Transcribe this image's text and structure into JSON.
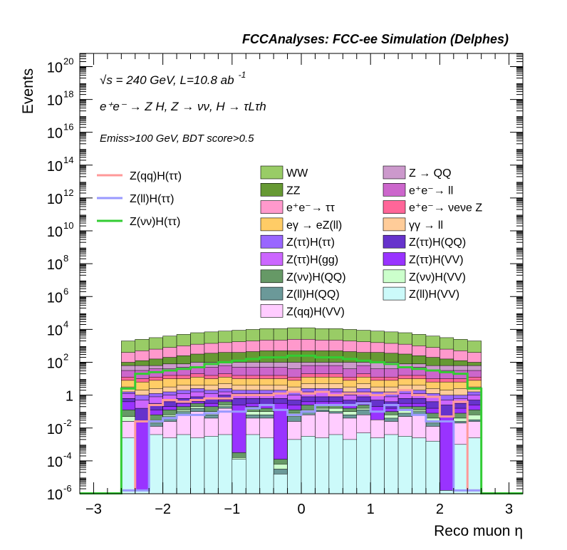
{
  "chart_data": {
    "type": "histogram-stack",
    "title": "FCCAnalyses: FCC-ee Simulation (Delphes)",
    "annotations": {
      "sqrt_s": "√s = 240 GeV, L=10.8 ab",
      "sqrt_s_exp": "-1",
      "process": "e⁺e⁻ → Z H, Z → νν, H → τLτh",
      "cuts": "Emiss>100 GeV, BDT score>0.5"
    },
    "xlabel": "Reco muon η",
    "ylabel": "Events",
    "xlim": [
      -3.2,
      3.2
    ],
    "ylim_log10": [
      -6,
      20.8
    ],
    "log_y": true,
    "x_ticks": [
      -3,
      -2,
      -1,
      0,
      1,
      2,
      3
    ],
    "x_tick_labels": [
      "−3",
      "−2",
      "−1",
      "0",
      "1",
      "2",
      "3"
    ],
    "y_ticks_log10": [
      -6,
      -4,
      -2,
      0,
      2,
      4,
      6,
      8,
      10,
      12,
      14,
      16,
      18,
      20
    ],
    "y_tick_labels": [
      {
        "base": "10",
        "exp": "-6"
      },
      {
        "base": "10",
        "exp": "-4"
      },
      {
        "base": "10",
        "exp": "-2"
      },
      {
        "base": "1",
        "exp": ""
      },
      {
        "base": "10",
        "exp": "2"
      },
      {
        "base": "10",
        "exp": "4"
      },
      {
        "base": "10",
        "exp": "6"
      },
      {
        "base": "10",
        "exp": "8"
      },
      {
        "base": "10",
        "exp": "10"
      },
      {
        "base": "10",
        "exp": "12"
      },
      {
        "base": "10",
        "exp": "14"
      },
      {
        "base": "10",
        "exp": "16"
      },
      {
        "base": "10",
        "exp": "18"
      },
      {
        "base": "10",
        "exp": "20"
      }
    ],
    "bin_edges": [
      -2.6,
      -2.4,
      -2.2,
      -2.0,
      -1.8,
      -1.6,
      -1.4,
      -1.2,
      -1.0,
      -0.8,
      -0.6,
      -0.4,
      -0.2,
      0.0,
      0.2,
      0.4,
      0.6,
      0.8,
      1.0,
      1.2,
      1.4,
      1.6,
      1.8,
      2.0,
      2.2,
      2.4,
      2.6
    ],
    "stack_totals_log10": [
      3.3,
      3.4,
      3.5,
      3.6,
      3.7,
      3.8,
      3.85,
      3.9,
      3.95,
      4.0,
      4.05,
      4.05,
      4.1,
      4.1,
      4.05,
      4.05,
      4.0,
      3.95,
      3.9,
      3.85,
      3.8,
      3.7,
      3.6,
      3.5,
      3.4,
      3.3
    ],
    "stack_layers": [
      {
        "name": "Z(ll)H(VV)",
        "color": "#ccfafa",
        "log10": [
          -2.6,
          -5.8,
          -2.4,
          -2.6,
          -2.4,
          -2.6,
          -2.5,
          -2.4,
          -3.9,
          -2.4,
          -2.6,
          -4.8,
          -2.7,
          -2.5,
          -2.6,
          -2.4,
          -2.7,
          -2.3,
          -2.6,
          -2.4,
          -2.5,
          -2.6,
          -2.8,
          -5.8,
          -3.0,
          -2.6
        ]
      },
      {
        "name": "Z(qq)H(VV)",
        "color": "#ffccff",
        "log10": [
          -1.6,
          -5.8,
          -1.9,
          -1.6,
          -1.2,
          -1.0,
          -1.4,
          -0.8,
          -4.6,
          -1.4,
          -1.4,
          -4.8,
          -1.6,
          -1.2,
          -1.0,
          -1.1,
          -1.4,
          -1.2,
          -1.5,
          -1.6,
          -1.3,
          -1.2,
          -1.9,
          -5.8,
          -1.7,
          -1.6
        ]
      },
      {
        "name": "Z(ll)H(QQ)",
        "color": "#6b9999",
        "log10": [
          -1.6,
          -5.8,
          -1.7,
          -1.3,
          -1.0,
          -0.8,
          -1.2,
          -0.7,
          -4.1,
          -1.2,
          -1.2,
          -4.5,
          -1.3,
          -1.0,
          -0.9,
          -1.0,
          -1.2,
          -0.9,
          -5.2,
          -1.4,
          -1.1,
          -1.0,
          -1.7,
          -5.8,
          -1.6,
          -1.5
        ]
      },
      {
        "name": "Z(νν)H(VV)",
        "color": "#ccffcc",
        "log10": [
          -1.3,
          -5.8,
          -1.5,
          -1.2,
          -0.9,
          -0.7,
          -1.0,
          -0.6,
          -3.8,
          -1.0,
          -1.0,
          -4.2,
          -1.1,
          -0.9,
          -0.8,
          -0.8,
          -1.0,
          -0.8,
          -4.4,
          -1.2,
          -0.9,
          -0.9,
          -1.4,
          -5.8,
          -1.4,
          -1.2
        ]
      },
      {
        "name": "Z(νν)H(QQ)",
        "color": "#669966",
        "log10": [
          -0.9,
          -5.8,
          -1.2,
          -0.9,
          -0.7,
          -0.5,
          -0.7,
          -0.4,
          -3.5,
          -0.7,
          -0.8,
          -3.9,
          -0.9,
          -0.6,
          -0.6,
          -0.6,
          -0.8,
          -0.6,
          -3.9,
          -1.0,
          -0.7,
          -0.7,
          -1.1,
          -5.8,
          -1.1,
          -0.9
        ]
      },
      {
        "name": "Z(ττ)H(VV)",
        "color": "#9933ff",
        "log10": [
          -0.4,
          -1.6,
          -0.9,
          -0.7,
          -0.5,
          -0.4,
          -0.5,
          -0.3,
          -0.6,
          -0.5,
          -0.6,
          -0.5,
          -0.6,
          -0.4,
          -0.4,
          -0.4,
          -0.6,
          -0.4,
          -0.7,
          -0.8,
          -0.5,
          -0.5,
          -0.8,
          -1.3,
          -0.8,
          -0.6
        ]
      },
      {
        "name": "Z(ττ)H(QQ)",
        "color": "#6633cc",
        "log10": [
          -0.2,
          -0.8,
          -0.5,
          -0.4,
          -0.2,
          -0.1,
          -0.2,
          0.0,
          -0.2,
          -0.2,
          -0.2,
          -0.2,
          -0.3,
          -0.1,
          -0.1,
          -0.1,
          -0.3,
          -0.1,
          -0.3,
          -0.4,
          -0.2,
          -0.2,
          -0.4,
          -0.6,
          -0.5,
          -0.3
        ]
      },
      {
        "name": "Z(ττ)H(gg)",
        "color": "#cc66ff",
        "log10": [
          0.1,
          -0.3,
          -0.1,
          0.0,
          0.1,
          0.2,
          0.1,
          0.2,
          0.1,
          0.1,
          0.1,
          0.1,
          0.0,
          0.2,
          0.2,
          0.2,
          0.0,
          0.2,
          0.0,
          -0.1,
          0.1,
          0.1,
          -0.1,
          -0.3,
          -0.2,
          0.0
        ]
      },
      {
        "name": "Z(ττ)H(ττ)",
        "color": "#9966ff",
        "log10": [
          0.2,
          0.0,
          0.1,
          0.2,
          0.3,
          0.4,
          0.3,
          0.4,
          0.3,
          0.3,
          0.3,
          0.3,
          0.2,
          0.4,
          0.4,
          0.4,
          0.2,
          0.4,
          0.2,
          0.2,
          0.3,
          0.3,
          0.1,
          0.0,
          0.0,
          0.2
        ]
      },
      {
        "name": "γγ → ll",
        "color": "#ffcc99",
        "log10": [
          0.5,
          0.3,
          0.4,
          0.5,
          0.6,
          0.6,
          0.6,
          0.7,
          0.6,
          0.6,
          0.6,
          0.6,
          0.5,
          0.7,
          0.7,
          0.7,
          0.5,
          0.7,
          0.5,
          0.5,
          0.6,
          0.6,
          0.4,
          0.3,
          0.4,
          0.5
        ]
      },
      {
        "name": "eγ → eZ(ll)",
        "color": "#ffcc66",
        "log10": [
          0.9,
          0.8,
          0.9,
          1.0,
          1.0,
          1.1,
          1.0,
          1.1,
          1.0,
          1.0,
          1.0,
          1.0,
          0.9,
          1.1,
          1.1,
          1.1,
          0.9,
          1.1,
          0.9,
          0.9,
          1.0,
          1.0,
          0.8,
          0.8,
          0.8,
          0.9
        ]
      },
      {
        "name": "e⁺e⁻→ νeνe Z",
        "color": "#ff6699",
        "log10": [
          1.1,
          1.0,
          1.1,
          1.2,
          1.2,
          1.3,
          1.2,
          1.3,
          1.2,
          1.2,
          1.2,
          1.2,
          1.1,
          1.3,
          1.3,
          1.3,
          1.1,
          1.3,
          1.1,
          1.1,
          1.2,
          1.2,
          1.0,
          1.0,
          1.0,
          1.1
        ]
      },
      {
        "name": "e⁺e⁻→ ll",
        "color": "#cc66cc",
        "log10": [
          1.5,
          1.5,
          1.6,
          1.6,
          1.7,
          1.7,
          1.7,
          1.8,
          1.7,
          1.7,
          1.7,
          1.7,
          1.6,
          1.8,
          1.8,
          1.8,
          1.6,
          1.8,
          1.6,
          1.6,
          1.7,
          1.7,
          1.5,
          1.5,
          1.5,
          1.5
        ]
      },
      {
        "name": "Z → QQ",
        "color": "#cc99cc",
        "log10": [
          1.8,
          1.8,
          1.8,
          1.9,
          1.9,
          2.0,
          2.0,
          2.0,
          2.0,
          2.0,
          2.0,
          2.0,
          2.0,
          2.0,
          2.0,
          2.0,
          2.0,
          2.0,
          2.0,
          2.0,
          1.9,
          1.9,
          1.8,
          1.8,
          1.8,
          1.8
        ]
      },
      {
        "name": "ZZ",
        "color": "#669933",
        "log10": [
          2.0,
          2.1,
          2.2,
          2.3,
          2.4,
          2.5,
          2.55,
          2.6,
          2.6,
          2.65,
          2.7,
          2.7,
          2.7,
          2.7,
          2.7,
          2.7,
          2.65,
          2.6,
          2.6,
          2.55,
          2.5,
          2.4,
          2.3,
          2.2,
          2.1,
          2.0
        ]
      },
      {
        "name": "e⁺e⁻→ ττ",
        "color": "#ff99cc",
        "log10": [
          2.6,
          2.7,
          2.8,
          2.9,
          3.0,
          3.1,
          3.15,
          3.2,
          3.25,
          3.3,
          3.35,
          3.35,
          3.4,
          3.4,
          3.35,
          3.35,
          3.3,
          3.25,
          3.2,
          3.15,
          3.1,
          3.0,
          2.9,
          2.8,
          2.7,
          2.6
        ]
      },
      {
        "name": "WW",
        "color": "#99cc66",
        "log10": [
          3.3,
          3.4,
          3.5,
          3.6,
          3.7,
          3.8,
          3.85,
          3.9,
          3.95,
          4.0,
          4.05,
          4.05,
          4.1,
          4.1,
          4.05,
          4.05,
          4.0,
          3.95,
          3.9,
          3.85,
          3.8,
          3.7,
          3.6,
          3.5,
          3.4,
          3.3
        ]
      }
    ],
    "signal_lines": [
      {
        "name": "Z(qq)H(ττ)",
        "color": "#ff9999",
        "log10": [
          -5.8,
          -1.6,
          -0.6,
          -0.3,
          -0.4,
          -0.3,
          -0.2,
          -0.2,
          0.0,
          0.0,
          0.0,
          0.1,
          0.2,
          0.1,
          0.2,
          0.0,
          0.1,
          0.1,
          0.0,
          0.1,
          0.3,
          0.0,
          -0.1,
          -1.3,
          -0.4,
          -5.8
        ]
      },
      {
        "name": "Z(ll)H(ττ)",
        "color": "#9999ff",
        "log10": [
          -5.8,
          -5.8,
          -1.6,
          -1.4,
          -1.2,
          -1.2,
          -1.1,
          -1.0,
          -1.0,
          -0.8,
          -0.6,
          -0.9,
          -1.2,
          -1.0,
          -0.6,
          -0.6,
          -0.6,
          -0.5,
          -1.0,
          -0.6,
          -0.9,
          -1.2,
          -1.6,
          -1.6,
          -5.8,
          -5.8
        ]
      },
      {
        "name": "Z(νν)H(ττ)",
        "color": "#33cc33",
        "log10": [
          0.4,
          1.3,
          1.4,
          1.5,
          1.6,
          1.7,
          1.9,
          2.0,
          2.1,
          2.2,
          2.3,
          2.3,
          2.4,
          2.4,
          2.3,
          2.3,
          2.2,
          2.1,
          2.0,
          1.9,
          1.7,
          1.6,
          1.5,
          1.4,
          1.3,
          0.4
        ]
      }
    ]
  },
  "legend_lines": [
    {
      "label": "Z(qq)H(ττ)",
      "color": "#ff9999"
    },
    {
      "label": "Z(ll)H(ττ)",
      "color": "#9999ff"
    },
    {
      "label": "Z(νν)H(ττ)",
      "color": "#33cc33"
    }
  ],
  "legend_boxes": [
    {
      "label": "WW",
      "color": "#99cc66"
    },
    {
      "label": "Z → QQ",
      "color": "#cc99cc"
    },
    {
      "label": "ZZ",
      "color": "#669933"
    },
    {
      "label": "e⁺e⁻→ ll",
      "color": "#cc66cc"
    },
    {
      "label": "e⁺e⁻→ ττ",
      "color": "#ff99cc"
    },
    {
      "label": "e⁺e⁻→ νeνe Z",
      "color": "#ff6699"
    },
    {
      "label": "eγ → eZ(ll)",
      "color": "#ffcc66"
    },
    {
      "label": "γγ → ll",
      "color": "#ffcc99"
    },
    {
      "label": "Z(ττ)H(ττ)",
      "color": "#9966ff"
    },
    {
      "label": "Z(ττ)H(QQ)",
      "color": "#6633cc"
    },
    {
      "label": "Z(ττ)H(gg)",
      "color": "#cc66ff"
    },
    {
      "label": "Z(ττ)H(VV)",
      "color": "#9933ff"
    },
    {
      "label": "Z(νν)H(QQ)",
      "color": "#669966"
    },
    {
      "label": "Z(νν)H(VV)",
      "color": "#ccffcc"
    },
    {
      "label": "Z(ll)H(QQ)",
      "color": "#6b9999"
    },
    {
      "label": "Z(ll)H(VV)",
      "color": "#ccfafa"
    },
    {
      "label": "Z(qq)H(VV)",
      "color": "#ffccff"
    }
  ]
}
